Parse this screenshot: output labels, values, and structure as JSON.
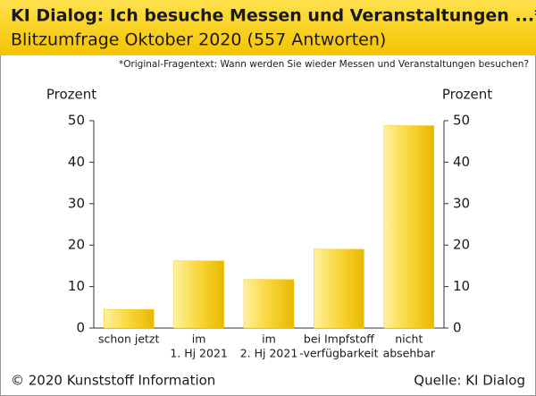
{
  "chart_data": {
    "type": "bar",
    "title": "KI Dialog: Ich besuche Messen und Veranstaltungen ...*",
    "subtitle": "Blitzumfrage Oktober 2020 (557 Antworten)",
    "note": "*Original-Fragentext: Wann werden Sie wieder Messen und Veranstaltungen besuchen?",
    "y_label": "Prozent",
    "y2_label": "Prozent",
    "categories": [
      [
        "schon jetzt"
      ],
      [
        "im",
        "1. Hj 2021"
      ],
      [
        "im",
        "2. Hj 2021"
      ],
      [
        "bei Impfstoff",
        "-verfügbarkeit"
      ],
      [
        "nicht",
        "absehbar"
      ]
    ],
    "values": [
      4.5,
      16.2,
      11.7,
      19,
      48.8
    ],
    "color": "#f5c400",
    "ylim": [
      0,
      50
    ],
    "yticks": [
      0,
      10,
      20,
      30,
      40,
      50
    ],
    "y2lim": [
      0,
      50
    ],
    "y2ticks": [
      0,
      10,
      20,
      30,
      40,
      50
    ],
    "footer_left": "© 2020 Kunststoff Information",
    "footer_right": "Quelle: KI Dialog"
  }
}
